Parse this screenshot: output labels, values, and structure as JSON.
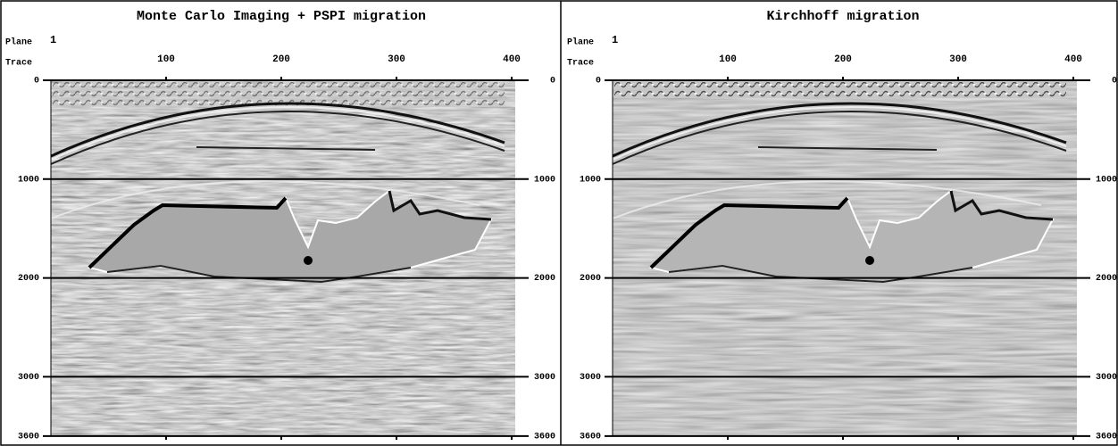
{
  "panels": [
    {
      "title": "Monte Carlo Imaging + PSPI migration",
      "plane_label": "Plane",
      "plane": 1,
      "trace_label": "Trace",
      "trace_ticks": [
        100,
        200,
        300,
        400
      ],
      "depth_ticks": [
        0,
        1000,
        2000,
        3000,
        3600
      ]
    },
    {
      "title": "Kirchhoff migration",
      "plane_label": "Plane",
      "plane": 1,
      "trace_label": "Trace",
      "trace_ticks": [
        100,
        200,
        300,
        400
      ],
      "depth_ticks": [
        0,
        1000,
        2000,
        3000,
        3600
      ]
    }
  ]
}
